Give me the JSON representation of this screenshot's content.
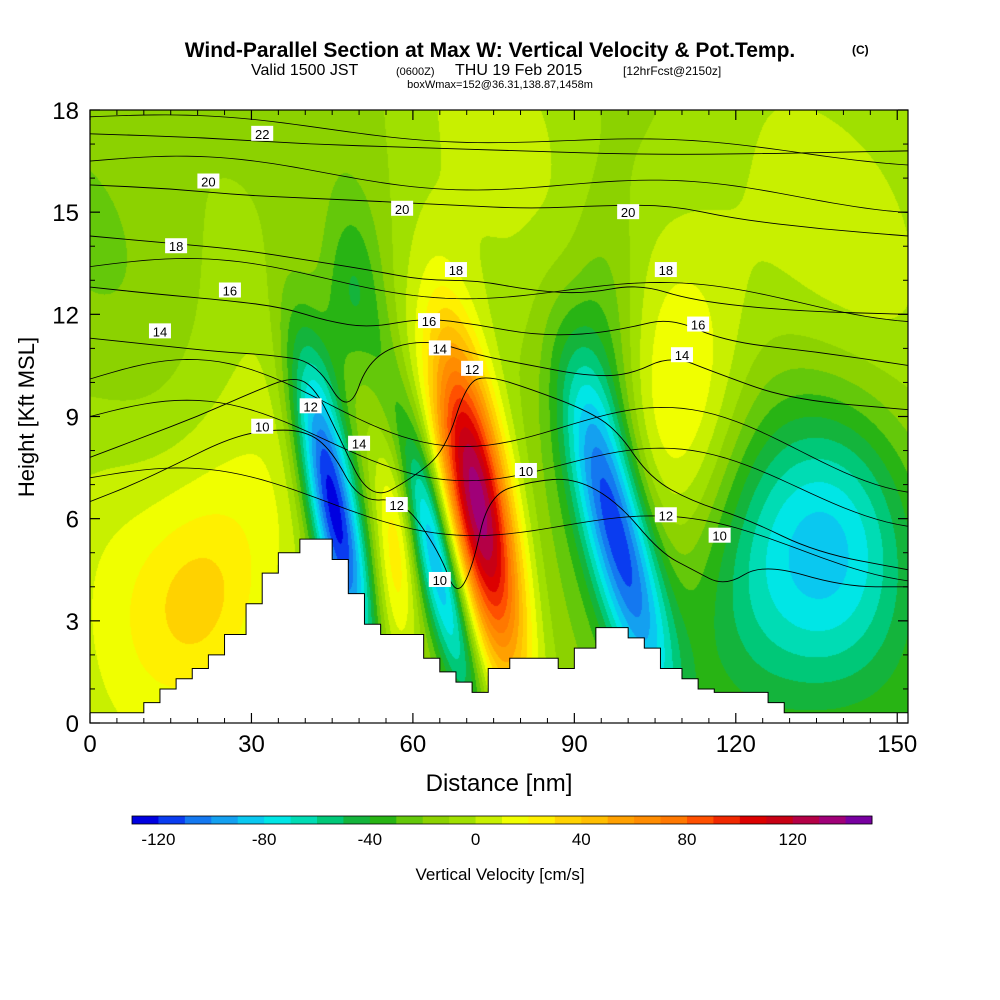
{
  "header": {
    "title": "Wind-Parallel Section at Max W: Vertical Velocity & Pot.Temp.",
    "copyright": "(C)",
    "valid_prefix": "Valid 1500 JST",
    "valid_utc": "(0600Z)",
    "valid_date": "THU 19 Feb 2015",
    "forecast": "[12hrFcst@2150z]",
    "box_info": "boxWmax=152@36.31,138.87,1458m"
  },
  "chart_data": {
    "type": "heatmap",
    "title": "Wind-Parallel Section at Max W: Vertical Velocity & Pot.Temp.",
    "xlabel": "Distance [nm]",
    "ylabel": "Height [Kft MSL]",
    "xlim": [
      0,
      152
    ],
    "ylim": [
      0,
      18
    ],
    "xticks": [
      "0",
      "30",
      "60",
      "90",
      "120",
      "150"
    ],
    "yticks": [
      "0",
      "3",
      "6",
      "9",
      "12",
      "15",
      "18"
    ],
    "colorbar": {
      "label": "Vertical Velocity [cm/s]",
      "tick_labels": [
        "-120",
        "-80",
        "-40",
        "0",
        "40",
        "80",
        "120"
      ],
      "levels": [
        -130,
        -120,
        -110,
        -100,
        -90,
        -80,
        -70,
        -60,
        -50,
        -40,
        -30,
        -20,
        -10,
        0,
        10,
        20,
        30,
        40,
        50,
        60,
        70,
        80,
        90,
        100,
        110,
        120,
        130,
        140,
        150
      ],
      "colors": [
        "#0000e0",
        "#0a3cf0",
        "#1478f0",
        "#14a0f0",
        "#0ac8f0",
        "#00e6e6",
        "#00dcb4",
        "#00c878",
        "#14b43c",
        "#28b414",
        "#64c80a",
        "#8cd200",
        "#a0e000",
        "#c8f000",
        "#f0ff00",
        "#fff000",
        "#ffd200",
        "#ffbe00",
        "#ffa000",
        "#ff8c00",
        "#ff7800",
        "#ff5000",
        "#f02800",
        "#dc0000",
        "#c80014",
        "#b40046",
        "#a00078",
        "#7800a0"
      ]
    },
    "surface_terrain_kft": [
      [
        0,
        0.3
      ],
      [
        10,
        0.3
      ],
      [
        10,
        0.6
      ],
      [
        13,
        0.6
      ],
      [
        13,
        1.0
      ],
      [
        16,
        1.0
      ],
      [
        16,
        1.3
      ],
      [
        19,
        1.3
      ],
      [
        19,
        1.6
      ],
      [
        22,
        1.6
      ],
      [
        22,
        2.0
      ],
      [
        25,
        2.0
      ],
      [
        25,
        2.6
      ],
      [
        29,
        2.6
      ],
      [
        29,
        3.5
      ],
      [
        32,
        3.5
      ],
      [
        32,
        4.4
      ],
      [
        35,
        4.4
      ],
      [
        35,
        5.0
      ],
      [
        39,
        5.0
      ],
      [
        39,
        5.4
      ],
      [
        45,
        5.4
      ],
      [
        45,
        4.8
      ],
      [
        48,
        4.8
      ],
      [
        48,
        3.8
      ],
      [
        51,
        3.8
      ],
      [
        51,
        2.9
      ],
      [
        54,
        2.9
      ],
      [
        54,
        2.6
      ],
      [
        58,
        2.6
      ],
      [
        58,
        2.6
      ],
      [
        62,
        2.6
      ],
      [
        62,
        1.9
      ],
      [
        65,
        1.9
      ],
      [
        65,
        1.5
      ],
      [
        68,
        1.5
      ],
      [
        68,
        1.2
      ],
      [
        71,
        1.2
      ],
      [
        71,
        0.9
      ],
      [
        74,
        0.9
      ],
      [
        74,
        1.6
      ],
      [
        78,
        1.6
      ],
      [
        78,
        1.9
      ],
      [
        84,
        1.9
      ],
      [
        84,
        1.9
      ],
      [
        87,
        1.9
      ],
      [
        87,
        1.6
      ],
      [
        90,
        1.6
      ],
      [
        90,
        2.2
      ],
      [
        94,
        2.2
      ],
      [
        94,
        2.8
      ],
      [
        100,
        2.8
      ],
      [
        100,
        2.5
      ],
      [
        103,
        2.5
      ],
      [
        103,
        2.2
      ],
      [
        106,
        2.2
      ],
      [
        106,
        1.6
      ],
      [
        110,
        1.6
      ],
      [
        110,
        1.3
      ],
      [
        113,
        1.3
      ],
      [
        113,
        1.0
      ],
      [
        116,
        1.0
      ],
      [
        116,
        0.9
      ],
      [
        119,
        0.9
      ],
      [
        119,
        0.9
      ],
      [
        126,
        0.9
      ],
      [
        126,
        0.6
      ],
      [
        129,
        0.6
      ],
      [
        129,
        0.3
      ],
      [
        152,
        0.3
      ]
    ],
    "w_cells": [
      {
        "x": 5,
        "y": 2.5,
        "w": 15,
        "sx": 12,
        "sy": 6
      },
      {
        "x": 28,
        "y": 5.0,
        "w": 28,
        "sx": 11,
        "sy": 3.5
      },
      {
        "x": 20,
        "y": 3.5,
        "w": 20,
        "sx": 8,
        "sy": 2
      },
      {
        "x": 45,
        "y": 6.5,
        "w": -125,
        "sx": 3.5,
        "sy": 3.3,
        "tilt": -0.19
      },
      {
        "x": 57,
        "y": 5.5,
        "w": 40,
        "sx": 3,
        "sy": 3
      },
      {
        "x": 64,
        "y": 5.0,
        "w": -90,
        "sx": 3,
        "sy": 3.5,
        "tilt": -0.25
      },
      {
        "x": 72,
        "y": 6.5,
        "w": 155,
        "sx": 4.5,
        "sy": 3.5,
        "tilt": -0.18
      },
      {
        "x": 98,
        "y": 5.5,
        "w": -100,
        "sx": 4.5,
        "sy": 3.5,
        "tilt": -0.25
      },
      {
        "x": 111,
        "y": 8.5,
        "w": 35,
        "sx": 8,
        "sy": 4
      },
      {
        "x": 122,
        "y": 4.5,
        "w": -55,
        "sx": 14,
        "sy": 3.5
      },
      {
        "x": 140,
        "y": 5.5,
        "w": -40,
        "sx": 10,
        "sy": 3
      },
      {
        "x": 85,
        "y": 14.5,
        "w": 10,
        "sx": 25,
        "sy": 6
      },
      {
        "x": 130,
        "y": 14.0,
        "w": 12,
        "sx": 25,
        "sy": 5
      },
      {
        "x": 48,
        "y": 12.5,
        "w": -30,
        "sx": 4,
        "sy": 2
      },
      {
        "x": 95,
        "y": 11.0,
        "w": -30,
        "sx": 5,
        "sy": 3
      }
    ],
    "isentropes": [
      {
        "label": "10",
        "points": [
          [
            0,
            6.5
          ],
          [
            8,
            7
          ],
          [
            16,
            7.6
          ],
          [
            25,
            8.3
          ],
          [
            32,
            8.6
          ],
          [
            40,
            8.6
          ],
          [
            45,
            8
          ],
          [
            50,
            6.5
          ],
          [
            58,
            6.6
          ],
          [
            65,
            5.0
          ],
          [
            68,
            3.7
          ],
          [
            71,
            4.5
          ],
          [
            74,
            6.7
          ],
          [
            82,
            7.1
          ],
          [
            90,
            7.2
          ],
          [
            98,
            6.5
          ],
          [
            106,
            5.0
          ],
          [
            112,
            4.5
          ],
          [
            118,
            4.0
          ],
          [
            125,
            4.7
          ],
          [
            140,
            4.0
          ],
          [
            152,
            4.0
          ]
        ],
        "label_at": [
          32,
          8.7
        ]
      },
      {
        "label": "12",
        "points": [
          [
            0,
            7.8
          ],
          [
            10,
            8.4
          ],
          [
            20,
            9.0
          ],
          [
            30,
            9.7
          ],
          [
            38,
            10.2
          ],
          [
            42,
            9.8
          ],
          [
            46,
            8.5
          ],
          [
            52,
            6.5
          ],
          [
            60,
            7.2
          ],
          [
            66,
            8.0
          ],
          [
            70,
            10.0
          ],
          [
            74,
            10.2
          ],
          [
            82,
            9.8
          ],
          [
            92,
            9.2
          ],
          [
            98,
            8.6
          ],
          [
            104,
            7.2
          ],
          [
            112,
            6.5
          ],
          [
            122,
            6.0
          ],
          [
            135,
            5.0
          ],
          [
            152,
            4.5
          ]
        ],
        "label_at": [
          41,
          9.3
        ]
      },
      {
        "label": "14",
        "points": [
          [
            0,
            11.3
          ],
          [
            12,
            11.1
          ],
          [
            24,
            10.9
          ],
          [
            34,
            10.8
          ],
          [
            42,
            10.6
          ],
          [
            48,
            9.0
          ],
          [
            52,
            10.8
          ],
          [
            62,
            11.3
          ],
          [
            72,
            10.8
          ],
          [
            82,
            10.5
          ],
          [
            92,
            10.2
          ],
          [
            100,
            10.2
          ],
          [
            108,
            10.8
          ],
          [
            116,
            10.3
          ],
          [
            130,
            9.5
          ],
          [
            152,
            9.2
          ]
        ],
        "label_at": [
          50,
          8.2
        ]
      },
      {
        "label": "16",
        "points": [
          [
            0,
            12.8
          ],
          [
            12,
            12.6
          ],
          [
            26,
            12.4
          ],
          [
            36,
            12.2
          ],
          [
            44,
            11.8
          ],
          [
            52,
            11.6
          ],
          [
            62,
            11.9
          ],
          [
            72,
            11.7
          ],
          [
            82,
            11.4
          ],
          [
            92,
            11.4
          ],
          [
            100,
            11.6
          ],
          [
            108,
            11.9
          ],
          [
            118,
            11.2
          ],
          [
            135,
            10.9
          ],
          [
            152,
            10.5
          ]
        ],
        "label_at": [
          26,
          12.7
        ]
      },
      {
        "label": "18",
        "points": [
          [
            0,
            14.3
          ],
          [
            14,
            14.1
          ],
          [
            28,
            13.9
          ],
          [
            40,
            13.6
          ],
          [
            52,
            13.3
          ],
          [
            62,
            13.0
          ],
          [
            72,
            13.0
          ],
          [
            82,
            12.7
          ],
          [
            92,
            12.6
          ],
          [
            102,
            12.9
          ],
          [
            112,
            12.4
          ],
          [
            130,
            12.1
          ],
          [
            152,
            12.0
          ]
        ],
        "label_at": [
          16,
          14.0
        ]
      },
      {
        "label": "20",
        "points": [
          [
            0,
            15.8
          ],
          [
            14,
            15.7
          ],
          [
            28,
            15.5
          ],
          [
            42,
            15.4
          ],
          [
            56,
            15.3
          ],
          [
            68,
            15.2
          ],
          [
            82,
            15.1
          ],
          [
            96,
            15.2
          ],
          [
            108,
            15.2
          ],
          [
            120,
            14.8
          ],
          [
            136,
            14.5
          ],
          [
            152,
            14.3
          ]
        ],
        "label_at": [
          22,
          15.9
        ]
      },
      {
        "label": "22",
        "points": [
          [
            0,
            17.3
          ],
          [
            20,
            17.2
          ],
          [
            40,
            17.0
          ],
          [
            60,
            16.9
          ],
          [
            80,
            16.8
          ],
          [
            100,
            16.7
          ],
          [
            120,
            16.7
          ],
          [
            152,
            16.8
          ]
        ],
        "label_at": [
          32,
          17.3
        ]
      }
    ],
    "contour_labels": [
      {
        "text": "22",
        "x": 32,
        "y": 17.3
      },
      {
        "text": "20",
        "x": 22,
        "y": 15.9
      },
      {
        "text": "20",
        "x": 58,
        "y": 15.1
      },
      {
        "text": "20",
        "x": 100,
        "y": 15.0
      },
      {
        "text": "18",
        "x": 16,
        "y": 14.0
      },
      {
        "text": "18",
        "x": 68,
        "y": 13.3
      },
      {
        "text": "18",
        "x": 107,
        "y": 13.3
      },
      {
        "text": "16",
        "x": 26,
        "y": 12.7
      },
      {
        "text": "16",
        "x": 63,
        "y": 11.8
      },
      {
        "text": "16",
        "x": 113,
        "y": 11.7
      },
      {
        "text": "14",
        "x": 13,
        "y": 11.5
      },
      {
        "text": "14",
        "x": 65,
        "y": 11.0
      },
      {
        "text": "14",
        "x": 110,
        "y": 10.8
      },
      {
        "text": "14",
        "x": 50,
        "y": 8.2
      },
      {
        "text": "12",
        "x": 41,
        "y": 9.3
      },
      {
        "text": "12",
        "x": 71,
        "y": 10.4
      },
      {
        "text": "12",
        "x": 57,
        "y": 6.4
      },
      {
        "text": "12",
        "x": 107,
        "y": 6.1
      },
      {
        "text": "10",
        "x": 32,
        "y": 8.7
      },
      {
        "text": "10",
        "x": 81,
        "y": 7.4
      },
      {
        "text": "10",
        "x": 65,
        "y": 4.2
      },
      {
        "text": "10",
        "x": 117,
        "y": 5.5
      }
    ]
  }
}
